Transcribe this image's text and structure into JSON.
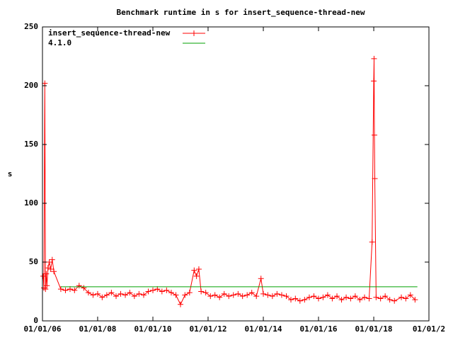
{
  "chart_data": {
    "type": "line",
    "title": "Benchmark runtime in s for insert_sequence-thread-new",
    "y_label": "s",
    "xlim": [
      "2006-01-01",
      "2020-01-01"
    ],
    "xticks": [
      {
        "value": "2006-01-01",
        "label": "01/01/06"
      },
      {
        "value": "2008-01-01",
        "label": "01/01/08"
      },
      {
        "value": "2010-01-01",
        "label": "01/01/10"
      },
      {
        "value": "2012-01-01",
        "label": "01/01/12"
      },
      {
        "value": "2014-01-01",
        "label": "01/01/14"
      },
      {
        "value": "2016-01-01",
        "label": "01/01/16"
      },
      {
        "value": "2018-01-01",
        "label": "01/01/18"
      },
      {
        "value": "2020-01-01",
        "label": "01/01/2"
      }
    ],
    "ylim": [
      0,
      250
    ],
    "yticks": [
      0,
      50,
      100,
      150,
      200,
      250
    ],
    "legend": "upper left",
    "series": [
      {
        "name": "insert_sequence-thread-new",
        "color": "#ff0000",
        "marker": "plus",
        "x": [
          "2006-01-10",
          "2006-01-20",
          "2006-02-01",
          "2006-02-10",
          "2006-02-20",
          "2006-03-01",
          "2006-03-15",
          "2006-04-01",
          "2006-04-20",
          "2006-05-10",
          "2006-06-01",
          "2006-09-01",
          "2006-11-01",
          "2007-01-01",
          "2007-03-01",
          "2007-05-01",
          "2007-07-01",
          "2007-09-01",
          "2007-11-01",
          "2008-01-01",
          "2008-03-01",
          "2008-05-01",
          "2008-07-01",
          "2008-09-01",
          "2008-11-01",
          "2009-01-01",
          "2009-03-01",
          "2009-05-01",
          "2009-07-01",
          "2009-09-01",
          "2009-11-01",
          "2010-01-01",
          "2010-03-01",
          "2010-05-01",
          "2010-07-01",
          "2010-09-01",
          "2010-11-01",
          "2011-01-01",
          "2011-03-01",
          "2011-05-01",
          "2011-07-01",
          "2011-08-01",
          "2011-09-01",
          "2011-10-01",
          "2011-12-01",
          "2012-02-01",
          "2012-04-01",
          "2012-06-01",
          "2012-08-01",
          "2012-10-01",
          "2012-12-01",
          "2013-02-01",
          "2013-04-01",
          "2013-06-01",
          "2013-08-01",
          "2013-10-01",
          "2013-12-01",
          "2014-01-01",
          "2014-03-01",
          "2014-05-01",
          "2014-07-01",
          "2014-09-01",
          "2014-11-01",
          "2015-01-01",
          "2015-03-01",
          "2015-05-01",
          "2015-07-01",
          "2015-09-01",
          "2015-11-01",
          "2016-01-01",
          "2016-03-01",
          "2016-05-01",
          "2016-07-01",
          "2016-09-01",
          "2016-11-01",
          "2017-01-01",
          "2017-03-01",
          "2017-05-01",
          "2017-07-01",
          "2017-09-01",
          "2017-11-01",
          "2017-12-10",
          "2018-01-01",
          "2018-01-05",
          "2018-01-10",
          "2018-01-15",
          "2018-02-01",
          "2018-04-01",
          "2018-06-01",
          "2018-08-01",
          "2018-10-01",
          "2019-01-01",
          "2019-03-01",
          "2019-05-01",
          "2019-07-01"
        ],
        "values": [
          38,
          28,
          202,
          27,
          40,
          30,
          45,
          50,
          44,
          52,
          42,
          27,
          26,
          27,
          26,
          30,
          28,
          24,
          22,
          23,
          20,
          22,
          24,
          21,
          23,
          22,
          24,
          21,
          23,
          22,
          25,
          26,
          27,
          25,
          26,
          24,
          22,
          14,
          22,
          24,
          43,
          38,
          44,
          25,
          24,
          21,
          22,
          20,
          23,
          21,
          22,
          23,
          21,
          22,
          24,
          21,
          36,
          23,
          22,
          21,
          23,
          22,
          21,
          18,
          19,
          17,
          18,
          20,
          21,
          19,
          20,
          22,
          19,
          21,
          18,
          20,
          19,
          21,
          18,
          20,
          19,
          67,
          204,
          223,
          158,
          121,
          20,
          19,
          21,
          18,
          17,
          20,
          19,
          22,
          18
        ]
      },
      {
        "name": "4.1.0",
        "color": "#00a000",
        "x": [
          "2006-09-01",
          "2019-08-01"
        ],
        "values": [
          29,
          29
        ]
      }
    ]
  }
}
